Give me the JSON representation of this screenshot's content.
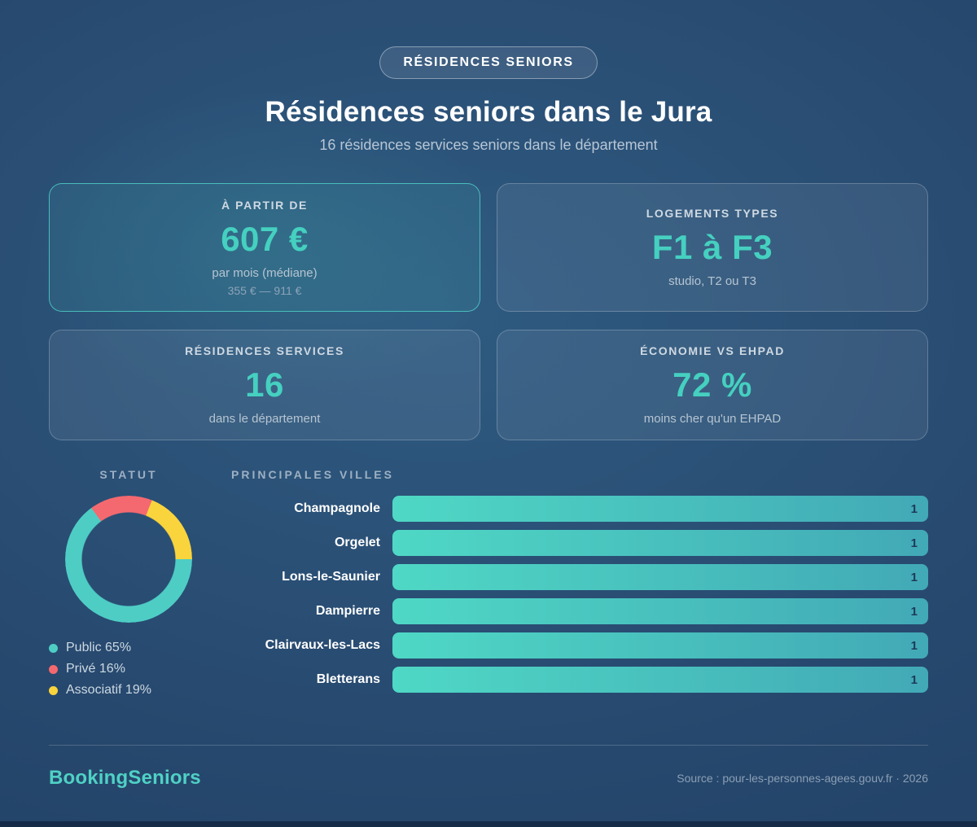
{
  "badge": {
    "label": "RÉSIDENCES SENIORS"
  },
  "header": {
    "title": "Résidences seniors dans le Jura",
    "subtitle": "16 résidences services seniors dans le département"
  },
  "stat_cards": [
    {
      "label": "À PARTIR DE",
      "value": "607 €",
      "sub": "par mois (médiane)",
      "range": "355 € — 911 €",
      "highlighted": true
    },
    {
      "label": "LOGEMENTS TYPES",
      "value": "F1 à F3",
      "sub": "studio, T2 ou T3",
      "highlighted": false
    },
    {
      "label": "RÉSIDENCES SERVICES",
      "value": "16",
      "sub": "dans le département",
      "highlighted": false
    },
    {
      "label": "ÉCONOMIE VS EHPAD",
      "value": "72 %",
      "sub": "moins cher qu'un EHPAD",
      "highlighted": false
    }
  ],
  "chart_data": [
    {
      "type": "pie",
      "title": "STATUT",
      "donut": true,
      "start_angle": "3-oclock-clockwise",
      "labels": [
        "Public",
        "Privé",
        "Associatif"
      ],
      "values": [
        65,
        16,
        19
      ],
      "colors": [
        "#4ECDC4",
        "#F4696F",
        "#F9D43C"
      ],
      "legend_entries": [
        "Public 65%",
        "Privé 16%",
        "Associatif 19%"
      ],
      "legend_position": "below"
    },
    {
      "type": "bar",
      "title": "PRINCIPALES VILLES",
      "orientation": "horizontal",
      "categories": [
        "Champagnole",
        "Orgelet",
        "Lons-le-Saunier",
        "Dampierre",
        "Clairvaux-les-Lacs",
        "Bletterans"
      ],
      "values": [
        1,
        1,
        1,
        1,
        1,
        1
      ],
      "xlim": [
        0,
        1
      ],
      "value_labels": "inside-right",
      "bar_color_start": "#4FD8C5",
      "bar_color_end": "#42A9B6",
      "grid": false,
      "legend_position": "none"
    }
  ],
  "footer": {
    "brand": "BookingSeniors",
    "source": "Source : pour-les-personnes-agees.gouv.fr · 2026"
  },
  "colors": {
    "accent_teal": "#45D0C0",
    "pie_public": "#4ECDC4",
    "pie_prive": "#F4696F",
    "pie_associatif": "#F9D43C",
    "background_center": "#2F5B81",
    "background_edge": "#1F3D61",
    "bar_value_text": "#1D3A5A",
    "bottom_strip": "#152B47"
  }
}
